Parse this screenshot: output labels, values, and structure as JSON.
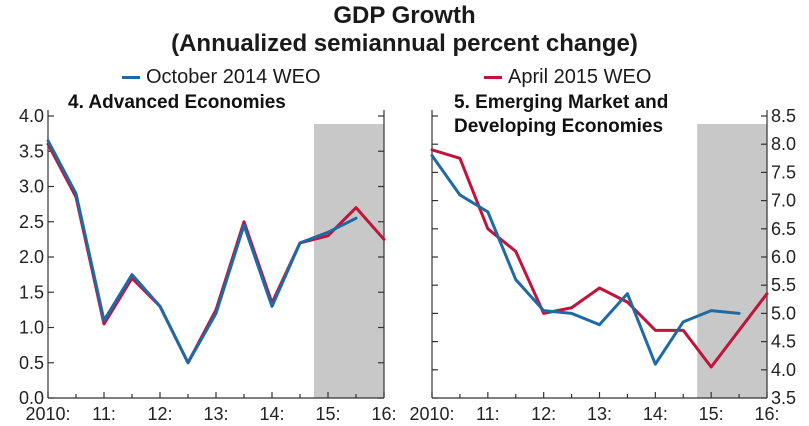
{
  "title": "GDP Growth",
  "subtitle": "(Annualized semiannual percent change)",
  "colors": {
    "october": "#1f6aa5",
    "april": "#c0143c",
    "forecast_shade": "#c8c8c8",
    "axis": "#333333"
  },
  "legend": [
    {
      "name": "October 2014 WEO",
      "color": "#1f6aa5"
    },
    {
      "name": "April 2015 WEO",
      "color": "#c0143c"
    }
  ],
  "chart_data": [
    {
      "type": "line",
      "panel_title": "4. Advanced Economies",
      "ylim": [
        0.0,
        4.0
      ],
      "yticks": [
        "0.0",
        "0.5",
        "1.0",
        "1.5",
        "2.0",
        "2.5",
        "3.0",
        "3.5",
        "4.0"
      ],
      "y_axis_side": "left",
      "xlim": [
        2010.0,
        2016.0
      ],
      "x_ticks": [
        {
          "label": "2010:",
          "x": 2010
        },
        {
          "label": "11:",
          "x": 2011
        },
        {
          "label": "12:",
          "x": 2012
        },
        {
          "label": "13:",
          "x": 2013
        },
        {
          "label": "14:",
          "x": 2014
        },
        {
          "label": "15:",
          "x": 2015
        },
        {
          "label": "16:",
          "x": 2016
        }
      ],
      "forecast_start": 2014.75,
      "series": [
        {
          "name": "October 2014 WEO",
          "x": [
            2010.0,
            2010.5,
            2011.0,
            2011.5,
            2012.0,
            2012.5,
            2013.0,
            2013.5,
            2014.0,
            2014.5,
            2015.0,
            2015.5
          ],
          "y": [
            3.65,
            2.9,
            1.1,
            1.75,
            1.3,
            0.5,
            1.2,
            2.45,
            1.3,
            2.2,
            2.35,
            2.55
          ]
        },
        {
          "name": "April 2015 WEO",
          "x": [
            2010.0,
            2010.5,
            2011.0,
            2011.5,
            2012.0,
            2012.5,
            2013.0,
            2013.5,
            2014.0,
            2014.5,
            2015.0,
            2015.5,
            2016.0
          ],
          "y": [
            3.6,
            2.85,
            1.05,
            1.7,
            1.3,
            0.5,
            1.25,
            2.5,
            1.35,
            2.2,
            2.3,
            2.7,
            2.25
          ]
        }
      ]
    },
    {
      "type": "line",
      "panel_title": "5. Emerging Market and Developing Economies",
      "title_lines": [
        "5. Emerging Market and",
        "Developing Economies"
      ],
      "ylim": [
        3.5,
        8.5
      ],
      "yticks": [
        "3.5",
        "4.0",
        "4.5",
        "5.0",
        "5.5",
        "6.0",
        "6.5",
        "7.0",
        "7.5",
        "8.0",
        "8.5"
      ],
      "y_axis_side": "right",
      "xlim": [
        2010.0,
        2016.0
      ],
      "x_ticks": [
        {
          "label": "2010:",
          "x": 2010
        },
        {
          "label": "11:",
          "x": 2011
        },
        {
          "label": "12:",
          "x": 2012
        },
        {
          "label": "13:",
          "x": 2013
        },
        {
          "label": "14:",
          "x": 2014
        },
        {
          "label": "15:",
          "x": 2015
        },
        {
          "label": "16:",
          "x": 2016
        }
      ],
      "forecast_start": 2014.75,
      "series": [
        {
          "name": "October 2014 WEO",
          "x": [
            2010.0,
            2010.5,
            2011.0,
            2011.5,
            2012.0,
            2012.5,
            2013.0,
            2013.5,
            2014.0,
            2014.5,
            2015.0,
            2015.5
          ],
          "y": [
            7.8,
            7.1,
            6.8,
            5.6,
            5.05,
            5.0,
            4.8,
            5.35,
            4.1,
            4.85,
            5.05,
            5.0
          ]
        },
        {
          "name": "April 2015 WEO",
          "x": [
            2010.0,
            2010.5,
            2011.0,
            2011.5,
            2012.0,
            2012.5,
            2013.0,
            2013.5,
            2014.0,
            2014.5,
            2015.0,
            2015.5,
            2016.0
          ],
          "y": [
            7.9,
            7.75,
            6.5,
            6.1,
            5.0,
            5.1,
            5.45,
            5.2,
            4.7,
            4.7,
            4.05,
            4.7,
            5.35
          ]
        }
      ]
    }
  ]
}
